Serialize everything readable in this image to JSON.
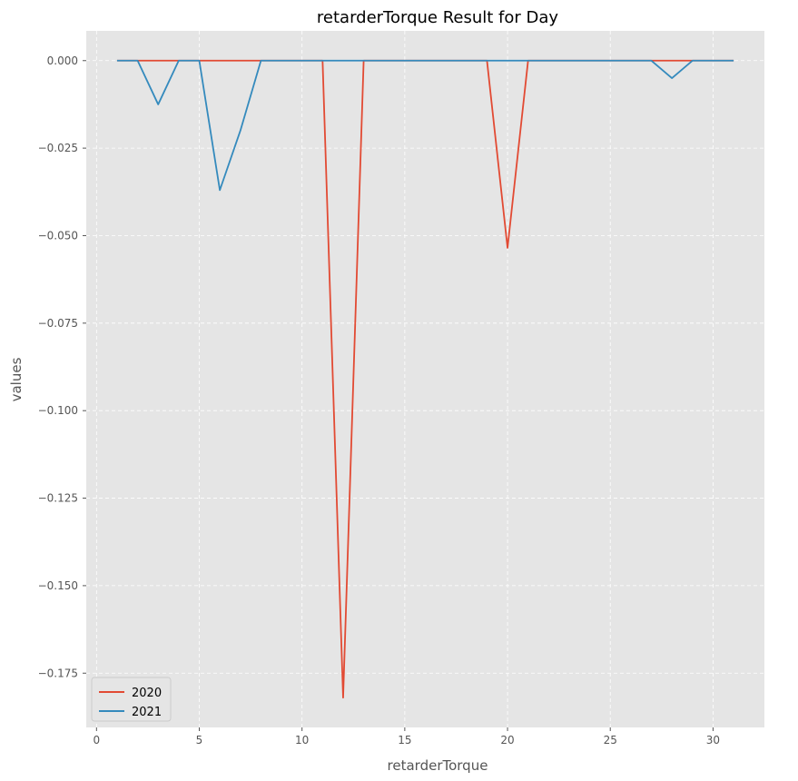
{
  "chart_data": {
    "type": "line",
    "title": "retarderTorque Result for Day",
    "xlabel": "retarderTorque",
    "ylabel": "values",
    "xlim": [
      -0.5,
      32.5
    ],
    "ylim": [
      -0.1905,
      0.0085
    ],
    "xticks": [
      0,
      5,
      10,
      15,
      20,
      25,
      30
    ],
    "xtick_labels": [
      "0",
      "5",
      "10",
      "15",
      "20",
      "25",
      "30"
    ],
    "yticks": [
      0.0,
      -0.025,
      -0.05,
      -0.075,
      -0.1,
      -0.125,
      -0.15,
      -0.175
    ],
    "ytick_labels": [
      "0.000",
      "−0.025",
      "−0.050",
      "−0.075",
      "−0.100",
      "−0.125",
      "−0.150",
      "−0.175"
    ],
    "grid": true,
    "legend_position": "lower-left",
    "x": [
      1,
      2,
      3,
      4,
      5,
      6,
      7,
      8,
      9,
      10,
      11,
      12,
      13,
      14,
      15,
      16,
      17,
      18,
      19,
      20,
      21,
      22,
      23,
      24,
      25,
      26,
      27,
      28,
      29,
      30,
      31
    ],
    "series": [
      {
        "name": "2020",
        "color": "#E24A33",
        "values": [
          0,
          0,
          0,
          0,
          0,
          0,
          0,
          0,
          0,
          0,
          0,
          -0.182,
          0,
          0,
          0,
          0,
          0,
          0,
          0,
          -0.0535,
          0,
          0,
          0,
          0,
          0,
          0,
          0,
          0,
          0,
          0,
          0
        ]
      },
      {
        "name": "2021",
        "color": "#348ABD",
        "values": [
          0,
          0,
          -0.0125,
          0,
          0,
          -0.037,
          -0.02,
          0,
          0,
          0,
          0,
          0,
          0,
          0,
          0,
          0,
          0,
          0,
          0,
          0,
          0,
          0,
          0,
          0,
          0,
          0,
          0,
          -0.005,
          0,
          0,
          0
        ]
      }
    ]
  },
  "colors": {
    "plot_background": "#E5E5E5",
    "grid": "#FFFFFF"
  }
}
